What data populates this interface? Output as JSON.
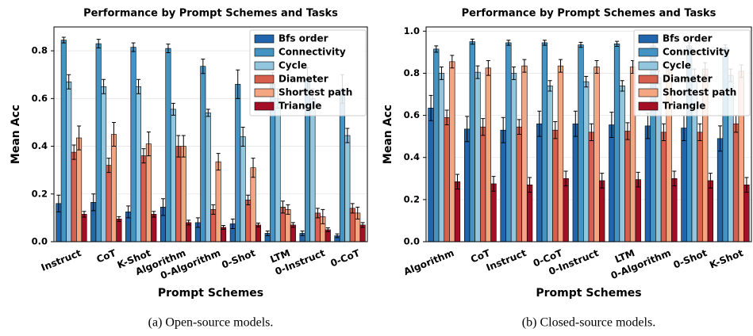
{
  "chart_data": [
    {
      "type": "bar",
      "title": "Performance by Prompt Schemes and Tasks",
      "xlabel": "Prompt Schemes",
      "ylabel": "Mean Acc",
      "caption": "(a) Open-source models.",
      "categories": [
        "Instruct",
        "CoT",
        "K-Shot",
        "Algorithm",
        "0-Algorithm",
        "0-Shot",
        "LTM",
        "0-Instruct",
        "0-CoT"
      ],
      "ylim": [
        0,
        0.9
      ],
      "yticks": [
        {
          "value": 0,
          "label": "0.0"
        },
        0.2,
        0.4,
        0.6,
        0.8
      ],
      "grid": true,
      "legend": "upper right",
      "series": [
        {
          "name": "Bfs order",
          "color": "#2166ac",
          "values": [
            0.16,
            0.165,
            0.125,
            0.145,
            0.08,
            0.075,
            0.035,
            0.035,
            0.025
          ],
          "errors": [
            0.035,
            0.035,
            0.025,
            0.035,
            0.02,
            0.02,
            0.01,
            0.01,
            0.008
          ]
        },
        {
          "name": "Connectivity",
          "color": "#4393c3",
          "values": [
            0.845,
            0.83,
            0.815,
            0.81,
            0.735,
            0.66,
            0.66,
            0.68,
            0.64
          ],
          "errors": [
            0.012,
            0.018,
            0.018,
            0.018,
            0.03,
            0.06,
            0.05,
            0.05,
            0.06
          ]
        },
        {
          "name": "Cycle",
          "color": "#92c5de",
          "values": [
            0.67,
            0.65,
            0.65,
            0.555,
            0.54,
            0.44,
            0.6,
            0.6,
            0.445
          ],
          "errors": [
            0.03,
            0.03,
            0.03,
            0.025,
            0.015,
            0.04,
            0.04,
            0.04,
            0.03
          ]
        },
        {
          "name": "Diameter",
          "color": "#d6604d",
          "values": [
            0.375,
            0.32,
            0.36,
            0.4,
            0.135,
            0.175,
            0.145,
            0.12,
            0.14
          ],
          "errors": [
            0.03,
            0.03,
            0.03,
            0.045,
            0.02,
            0.02,
            0.025,
            0.02,
            0.02
          ]
        },
        {
          "name": "Shortest path",
          "color": "#f4a582",
          "values": [
            0.435,
            0.45,
            0.41,
            0.4,
            0.335,
            0.31,
            0.135,
            0.105,
            0.12
          ],
          "errors": [
            0.05,
            0.05,
            0.05,
            0.045,
            0.035,
            0.04,
            0.02,
            0.03,
            0.025
          ]
        },
        {
          "name": "Triangle",
          "color": "#a50f26",
          "values": [
            0.115,
            0.095,
            0.115,
            0.08,
            0.06,
            0.07,
            0.07,
            0.05,
            0.07
          ],
          "errors": [
            0.012,
            0.01,
            0.012,
            0.01,
            0.008,
            0.008,
            0.01,
            0.008,
            0.01
          ]
        }
      ]
    },
    {
      "type": "bar",
      "title": "Performance by Prompt Schemes and Tasks",
      "xlabel": "Prompt Schemes",
      "ylabel": "Mean Acc",
      "caption": "(b) Closed-source models.",
      "categories": [
        "Algorithm",
        "CoT",
        "Instruct",
        "0-CoT",
        "0-Instruct",
        "LTM",
        "0-Algorithm",
        "0-Shot",
        "K-Shot"
      ],
      "ylim": [
        0,
        1.02
      ],
      "yticks": [
        {
          "value": 0,
          "label": "0.0"
        },
        0.2,
        0.4,
        0.6,
        0.8,
        {
          "value": 1,
          "label": "1.0"
        }
      ],
      "grid": true,
      "legend": "upper right",
      "series": [
        {
          "name": "Bfs order",
          "color": "#2166ac",
          "values": [
            0.635,
            0.535,
            0.53,
            0.56,
            0.56,
            0.555,
            0.55,
            0.54,
            0.49
          ],
          "errors": [
            0.06,
            0.06,
            0.06,
            0.06,
            0.06,
            0.06,
            0.06,
            0.06,
            0.06
          ]
        },
        {
          "name": "Connectivity",
          "color": "#4393c3",
          "values": [
            0.915,
            0.95,
            0.945,
            0.945,
            0.935,
            0.94,
            0.93,
            0.93,
            0.92
          ],
          "errors": [
            0.015,
            0.012,
            0.012,
            0.012,
            0.012,
            0.012,
            0.015,
            0.015,
            0.015
          ]
        },
        {
          "name": "Cycle",
          "color": "#92c5de",
          "values": [
            0.8,
            0.805,
            0.8,
            0.74,
            0.76,
            0.74,
            0.78,
            0.79,
            0.79
          ],
          "errors": [
            0.03,
            0.03,
            0.03,
            0.025,
            0.025,
            0.025,
            0.03,
            0.03,
            0.03
          ]
        },
        {
          "name": "Diameter",
          "color": "#d6604d",
          "values": [
            0.59,
            0.545,
            0.545,
            0.53,
            0.52,
            0.525,
            0.52,
            0.52,
            0.56
          ],
          "errors": [
            0.035,
            0.04,
            0.035,
            0.04,
            0.04,
            0.04,
            0.04,
            0.04,
            0.04
          ]
        },
        {
          "name": "Shortest path",
          "color": "#f4a582",
          "values": [
            0.855,
            0.825,
            0.835,
            0.835,
            0.83,
            0.83,
            0.82,
            0.82,
            0.81
          ],
          "errors": [
            0.03,
            0.035,
            0.03,
            0.03,
            0.03,
            0.03,
            0.03,
            0.03,
            0.03
          ]
        },
        {
          "name": "Triangle",
          "color": "#a50f26",
          "values": [
            0.285,
            0.275,
            0.27,
            0.3,
            0.29,
            0.295,
            0.3,
            0.29,
            0.27
          ],
          "errors": [
            0.035,
            0.035,
            0.035,
            0.035,
            0.035,
            0.035,
            0.035,
            0.035,
            0.035
          ]
        }
      ]
    }
  ]
}
